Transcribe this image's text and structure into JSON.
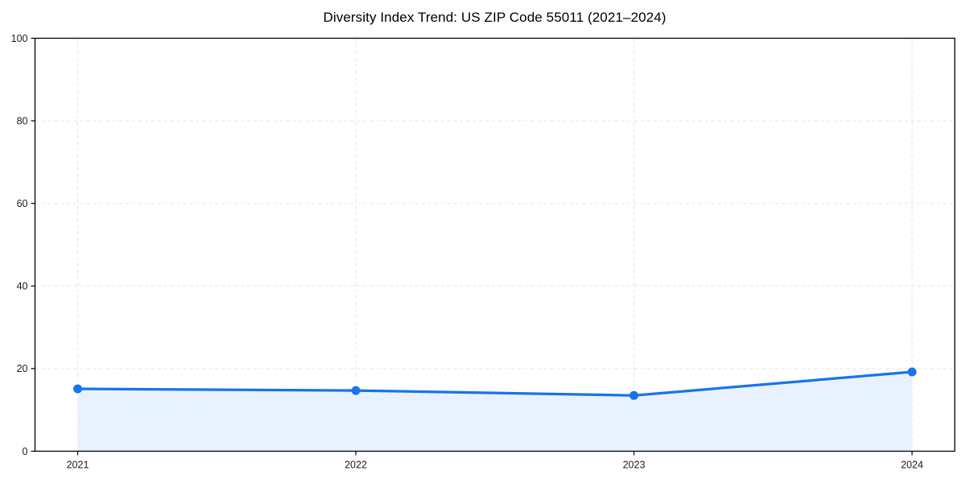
{
  "chart_data": {
    "type": "area",
    "title": "Diversity Index Trend: US ZIP Code 55011 (2021–2024)",
    "xlabel": "",
    "ylabel": "",
    "categories": [
      "2021",
      "2022",
      "2023",
      "2024"
    ],
    "series": [
      {
        "name": "Diversity Index",
        "values": [
          15.1,
          14.7,
          13.5,
          19.2
        ]
      }
    ],
    "ylim": [
      0,
      100
    ],
    "yticks": [
      0,
      20,
      40,
      60,
      80,
      100
    ],
    "grid": "dashed-both-axes",
    "legend": "none",
    "colors": {
      "line": "#1a73e8",
      "marker": "#1a73e8",
      "area_fill": "#e8f1fd",
      "grid": "#e3e3e3",
      "axis": "#000000",
      "tick_label": "#1a1a1a",
      "title": "#000000",
      "background": "#ffffff"
    }
  }
}
